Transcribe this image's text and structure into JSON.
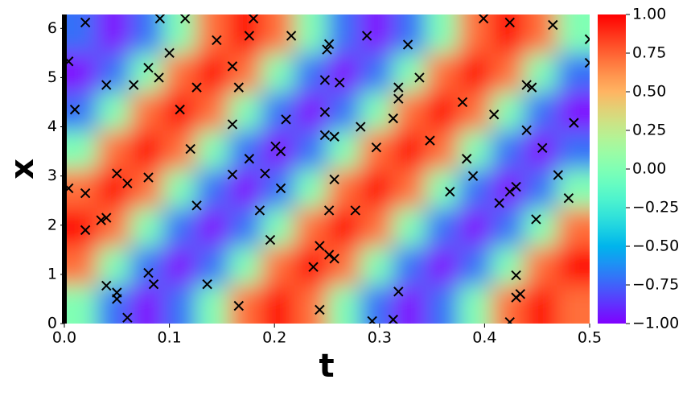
{
  "chart_data": {
    "type": "heatmap",
    "xlabel": "t",
    "ylabel": "x",
    "xlim": [
      0,
      0.5
    ],
    "ylim": [
      0,
      6.283
    ],
    "xticks": [
      {
        "value": 0,
        "label": "0.0"
      },
      {
        "value": 0.1,
        "label": "0.1"
      },
      {
        "value": 0.2,
        "label": "0.2"
      },
      {
        "value": 0.3,
        "label": "0.3"
      },
      {
        "value": 0.4,
        "label": "0.4"
      },
      {
        "value": 0.5,
        "label": "0.5"
      }
    ],
    "yticks": [
      0,
      1,
      2,
      3,
      4,
      5,
      6
    ],
    "colormap": "rainbow",
    "clim": [
      -1,
      1
    ],
    "cticks": [
      {
        "value": 1,
        "label": "1.00"
      },
      {
        "value": 0.75,
        "label": "0.75"
      },
      {
        "value": 0.5,
        "label": "0.50"
      },
      {
        "value": 0.25,
        "label": "0.25"
      },
      {
        "value": 0,
        "label": "0.00"
      },
      {
        "value": -0.25,
        "label": "−0.25"
      },
      {
        "value": -0.5,
        "label": "−0.50"
      },
      {
        "value": -0.75,
        "label": "−0.75"
      },
      {
        "value": -1,
        "label": "−1.00"
      }
    ],
    "z": [
      [
        0,
        -0.71,
        -1,
        -0.71,
        0,
        0.71,
        1,
        0.71,
        0,
        -0.71,
        -1,
        -0.71,
        0,
        0.71,
        1,
        0.71
      ],
      [
        0.71,
        0,
        -0.71,
        -1,
        -0.71,
        0,
        0.71,
        1,
        0.71,
        0,
        -0.71,
        -1,
        -0.71,
        0,
        0.71,
        1
      ],
      [
        1,
        0.71,
        0,
        -0.71,
        -1,
        -0.71,
        0,
        0.71,
        1,
        0.71,
        0,
        -0.71,
        -1,
        -0.71,
        0,
        0.71
      ],
      [
        0.71,
        1,
        0.71,
        0,
        -0.71,
        -1,
        -0.71,
        0,
        0.71,
        1,
        0.71,
        0,
        -0.71,
        -1,
        -0.71,
        0
      ],
      [
        0,
        0.71,
        1,
        0.71,
        0,
        -0.71,
        -1,
        -0.71,
        0,
        0.71,
        1,
        0.71,
        0,
        -0.71,
        -1,
        -0.71
      ],
      [
        -0.71,
        0,
        0.71,
        1,
        0.71,
        0,
        -0.71,
        -1,
        -0.71,
        0,
        0.71,
        1,
        0.71,
        0,
        -0.71,
        -1
      ],
      [
        -1,
        -0.71,
        0,
        0.71,
        1,
        0.71,
        0,
        -0.71,
        -1,
        -0.71,
        0,
        0.71,
        1,
        0.71,
        0,
        -0.71
      ],
      [
        -0.71,
        -1,
        -0.71,
        0,
        0.71,
        1,
        0.71,
        0,
        -0.71,
        -1,
        -0.71,
        0,
        0.71,
        1,
        0.71,
        0
      ]
    ],
    "marker_color": "#000000",
    "scatter": {
      "x": [
        0.004,
        0.01,
        0.004,
        0.02,
        0.02,
        0.02,
        0.035,
        0.04,
        0.04,
        0.04,
        0.05,
        0.05,
        0.05,
        0.06,
        0.06,
        0.066,
        0.08,
        0.08,
        0.08,
        0.085,
        0.09,
        0.091,
        0.1,
        0.11,
        0.115,
        0.12,
        0.126,
        0.126,
        0.136,
        0.145,
        0.16,
        0.16,
        0.16,
        0.166,
        0.166,
        0.176,
        0.176,
        0.18,
        0.186,
        0.191,
        0.196,
        0.201,
        0.206,
        0.206,
        0.211,
        0.216,
        0.237,
        0.243,
        0.243,
        0.248,
        0.248,
        0.248,
        0.25,
        0.252,
        0.252,
        0.252,
        0.257,
        0.257,
        0.257,
        0.262,
        0.277,
        0.282,
        0.288,
        0.297,
        0.293,
        0.313,
        0.313,
        0.318,
        0.318,
        0.318,
        0.327,
        0.338,
        0.348,
        0.367,
        0.379,
        0.383,
        0.389,
        0.399,
        0.409,
        0.414,
        0.424,
        0.424,
        0.424,
        0.43,
        0.43,
        0.43,
        0.434,
        0.44,
        0.44,
        0.445,
        0.449,
        0.455,
        0.465,
        0.47,
        0.48,
        0.485,
        0.5,
        0.5
      ],
      "y": [
        5.33,
        4.35,
        2.75,
        6.12,
        2.65,
        1.9,
        2.1,
        2.15,
        0.77,
        4.85,
        3.05,
        0.63,
        0.5,
        0.12,
        2.85,
        4.85,
        2.97,
        1.03,
        5.2,
        0.8,
        5.0,
        6.2,
        5.5,
        4.35,
        6.2,
        3.55,
        4.8,
        2.4,
        0.8,
        5.76,
        5.23,
        4.05,
        3.03,
        4.8,
        0.36,
        5.85,
        3.35,
        6.2,
        2.3,
        3.05,
        1.7,
        3.6,
        3.5,
        2.75,
        4.15,
        5.85,
        1.15,
        1.58,
        0.28,
        4.3,
        4.95,
        3.83,
        5.57,
        5.68,
        2.3,
        1.4,
        1.32,
        2.93,
        3.8,
        4.9,
        2.3,
        4.0,
        5.85,
        3.58,
        0.05,
        4.17,
        0.08,
        4.8,
        4.57,
        0.65,
        5.67,
        5.0,
        3.72,
        2.68,
        4.5,
        3.35,
        3.0,
        6.2,
        4.25,
        2.45,
        6.12,
        2.68,
        0.03,
        2.78,
        0.98,
        0.53,
        0.6,
        4.85,
        3.93,
        4.8,
        2.12,
        3.57,
        6.07,
        3.02,
        2.55,
        4.08,
        5.78,
        5.3
      ]
    }
  }
}
